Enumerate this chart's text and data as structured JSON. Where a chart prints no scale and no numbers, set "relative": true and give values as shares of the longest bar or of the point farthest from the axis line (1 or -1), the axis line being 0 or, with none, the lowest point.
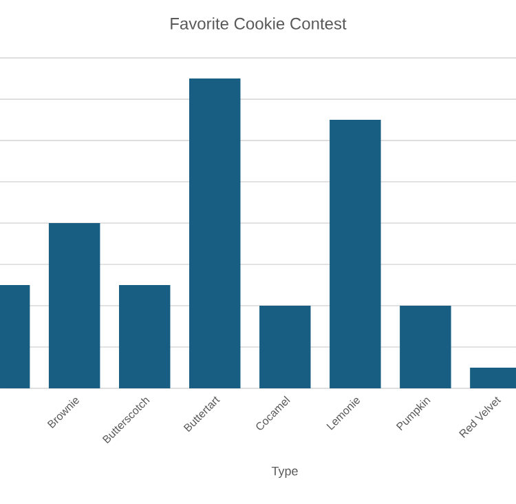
{
  "chart_data": {
    "type": "bar",
    "title": "Favorite Cookie Contest",
    "xlabel": "Type",
    "categories": [
      null,
      "Brownie",
      "Butterscotch",
      "Buttertart",
      "Cocamel",
      "Lemonie",
      "Pumpkin",
      "Red Velvet"
    ],
    "values": [
      0.3333,
      0.5333,
      0.3333,
      1,
      0.2667,
      0.8667,
      0.2667,
      0.0667
    ],
    "color": "#175e82",
    "relative": true,
    "grid": "y"
  }
}
